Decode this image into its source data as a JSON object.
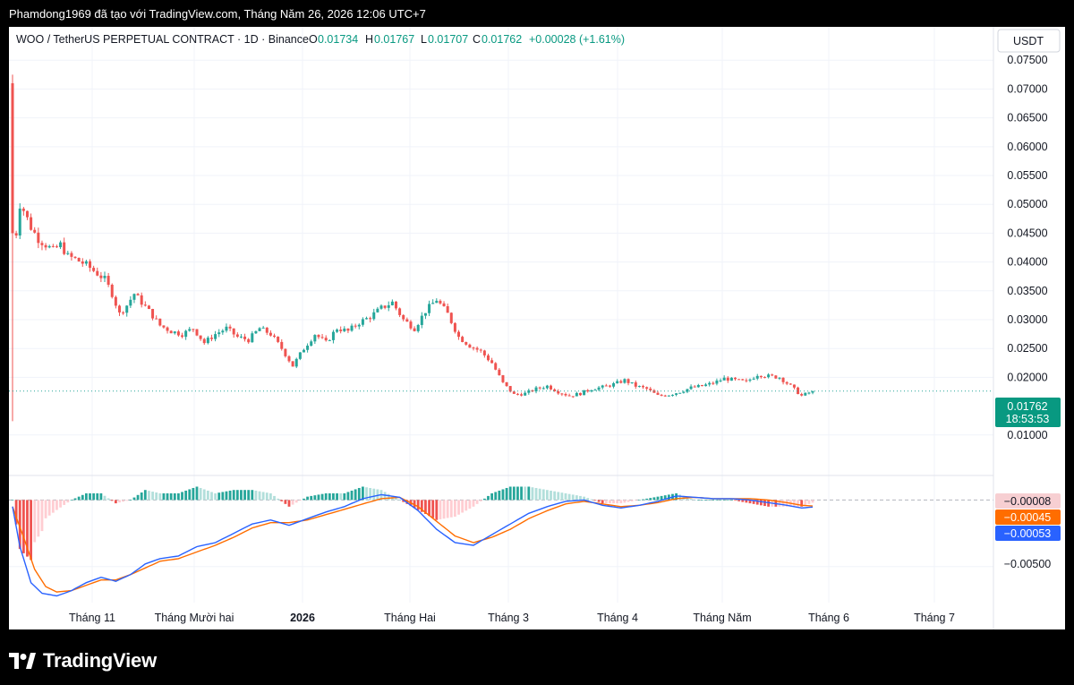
{
  "header": {
    "caption": "Phamdong1969 đã tạo với TradingView.com, Tháng Năm 26, 2026 12:06 UTC+7"
  },
  "symbol": {
    "title": "WOO / TetherUS PERPETUAL CONTRACT · 1D · Binance",
    "o_label": "O",
    "o_value": "0.01734",
    "h_label": "H",
    "h_value": "0.01767",
    "l_label": "L",
    "l_value": "0.01707",
    "c_label": "C",
    "c_value": "0.01762",
    "change": "+0.00028 (+1.61%)"
  },
  "currency_button": "USDT",
  "last_price": {
    "value": "0.01762",
    "countdown": "18:53:53"
  },
  "macd_labels": {
    "histogram": "−0.00008",
    "signal": "−0.00045",
    "macd": "−0.00053",
    "level": "−0.00500"
  },
  "footer": {
    "brand": "TradingView"
  },
  "colors": {
    "up": "#26a69a",
    "down": "#ef5350",
    "macd": "#2962ff",
    "signal": "#ff6d00",
    "hist_pos": "#26a69a",
    "hist_neg": "#ef5350"
  },
  "chart_data": [
    {
      "type": "candlestick",
      "ylim": [
        0.005,
        0.0755
      ],
      "y_ticks": [
        "0.07500",
        "0.07000",
        "0.06500",
        "0.06000",
        "0.05500",
        "0.05000",
        "0.04500",
        "0.04000",
        "0.03500",
        "0.03000",
        "0.02500",
        "0.02000",
        "0.01000"
      ],
      "x_ticks": [
        "Tháng 11",
        "Tháng Mười hai",
        "2026",
        "Tháng Hai",
        "Tháng 3",
        "Tháng 4",
        "Tháng Năm",
        "Tháng 6",
        "Tháng 7"
      ],
      "close_path": {
        "days": [
          0,
          1,
          2,
          3,
          5,
          7,
          9,
          11,
          13,
          15,
          17,
          20,
          23,
          25,
          27,
          29,
          31,
          33,
          35,
          37,
          40,
          43,
          46,
          49,
          52,
          55,
          58,
          61,
          64,
          67,
          70,
          73,
          76,
          79,
          82,
          85,
          88,
          91,
          94,
          97,
          100,
          103,
          106,
          109,
          112,
          115,
          118,
          121,
          124,
          127,
          130,
          133,
          136,
          139,
          142,
          145,
          148,
          151,
          154,
          157,
          160,
          163,
          166,
          169,
          172,
          175,
          178,
          181,
          184,
          187,
          190,
          193,
          196,
          199,
          202,
          205,
          208,
          211,
          214,
          217
        ],
        "close": [
          0.0705,
          0.045,
          0.05,
          0.049,
          0.046,
          0.044,
          0.043,
          0.042,
          0.043,
          0.041,
          0.0405,
          0.0395,
          0.038,
          0.037,
          0.0345,
          0.031,
          0.0325,
          0.0345,
          0.033,
          0.0315,
          0.029,
          0.028,
          0.0275,
          0.0285,
          0.026,
          0.0275,
          0.0285,
          0.027,
          0.0265,
          0.0285,
          0.0275,
          0.025,
          0.022,
          0.025,
          0.0275,
          0.026,
          0.0285,
          0.028,
          0.0295,
          0.0305,
          0.032,
          0.033,
          0.03,
          0.0285,
          0.0315,
          0.0335,
          0.031,
          0.027,
          0.0255,
          0.0245,
          0.0225,
          0.019,
          0.017,
          0.0172,
          0.018,
          0.0185,
          0.0175,
          0.0168,
          0.0172,
          0.018,
          0.0183,
          0.0188,
          0.0195,
          0.0185,
          0.018,
          0.0168,
          0.017,
          0.0175,
          0.0182,
          0.0185,
          0.019,
          0.0198,
          0.0195,
          0.0192,
          0.0205,
          0.0202,
          0.02,
          0.0185,
          0.0168,
          0.0176
        ]
      }
    },
    {
      "type": "macd",
      "ylim": [
        -0.0075,
        0.0011
      ],
      "y_ticks": [
        "−0.00500"
      ],
      "macd": {
        "days": [
          0,
          2,
          5,
          8,
          12,
          16,
          20,
          24,
          28,
          32,
          36,
          40,
          45,
          50,
          55,
          60,
          65,
          70,
          75,
          80,
          85,
          90,
          95,
          100,
          105,
          110,
          115,
          120,
          125,
          130,
          135,
          140,
          145,
          150,
          155,
          160,
          165,
          170,
          175,
          180,
          185,
          190,
          195,
          200,
          205,
          210,
          214,
          217
        ],
        "values": [
          -0.0005,
          -0.0035,
          -0.0062,
          -0.007,
          -0.0072,
          -0.0068,
          -0.0062,
          -0.0058,
          -0.0061,
          -0.0056,
          -0.0048,
          -0.0044,
          -0.0042,
          -0.0035,
          -0.0032,
          -0.0025,
          -0.0018,
          -0.0015,
          -0.0019,
          -0.0014,
          -0.0009,
          -0.0005,
          0.0001,
          0.0004,
          0.0002,
          -0.0008,
          -0.0022,
          -0.0032,
          -0.0034,
          -0.0026,
          -0.0018,
          -0.001,
          -0.0005,
          -0.0001,
          0.0,
          -0.0004,
          -0.0006,
          -0.0004,
          -0.0001,
          0.0003,
          0.0002,
          0.0001,
          0.0001,
          0.0,
          -0.0002,
          -0.0004,
          -0.0006,
          -0.00053
        ]
      },
      "signal": {
        "days": [
          0,
          3,
          6,
          9,
          12,
          16,
          20,
          24,
          28,
          32,
          36,
          40,
          45,
          50,
          55,
          60,
          65,
          70,
          75,
          80,
          85,
          90,
          95,
          100,
          105,
          110,
          115,
          120,
          125,
          130,
          135,
          140,
          145,
          150,
          155,
          160,
          165,
          170,
          175,
          180,
          185,
          190,
          195,
          200,
          205,
          210,
          214,
          217
        ],
        "values": [
          -0.0005,
          -0.0028,
          -0.0052,
          -0.0065,
          -0.0069,
          -0.0068,
          -0.0064,
          -0.006,
          -0.006,
          -0.0056,
          -0.0051,
          -0.0046,
          -0.0044,
          -0.0039,
          -0.0034,
          -0.0028,
          -0.0021,
          -0.0017,
          -0.0017,
          -0.0015,
          -0.0011,
          -0.0007,
          -0.0003,
          0.0001,
          0.0002,
          -0.0005,
          -0.0016,
          -0.0027,
          -0.0032,
          -0.0028,
          -0.0022,
          -0.0014,
          -0.0008,
          -0.0003,
          -0.0001,
          -0.0003,
          -0.0005,
          -0.0004,
          -0.0002,
          0.0001,
          0.0002,
          0.0001,
          0.0001,
          0.0001,
          0.0,
          -0.0002,
          -0.0004,
          -0.00045
        ]
      },
      "histogram_last": -8e-05
    }
  ]
}
